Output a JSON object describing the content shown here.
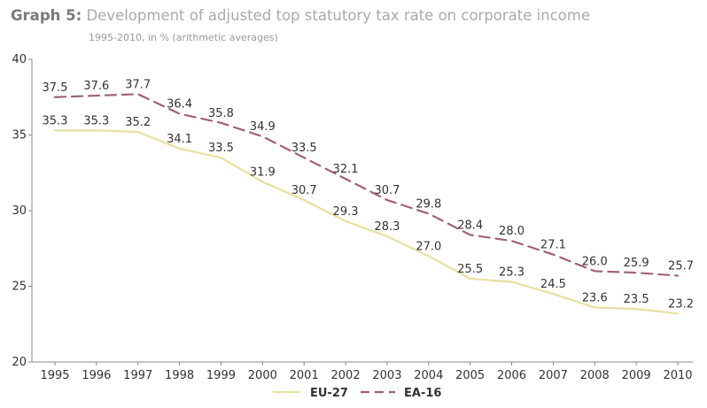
{
  "header": {
    "title_prefix": "Graph 5:",
    "title": "Development of adjusted top statutory tax rate on corporate income",
    "subtitle": "1995-2010, in % (arithmetic averages)"
  },
  "chart_data": {
    "type": "line",
    "x": [
      "1995",
      "1996",
      "1997",
      "1998",
      "1999",
      "2000",
      "2001",
      "2002",
      "2003",
      "2004",
      "2005",
      "2006",
      "2007",
      "2008",
      "2009",
      "2010"
    ],
    "ylim": [
      20,
      40
    ],
    "yticks": [
      20,
      25,
      30,
      35,
      40
    ],
    "grid": false,
    "legend": "bottom",
    "series": [
      {
        "name": "EU-27",
        "color": "#e8e0a0",
        "style": "solid",
        "values": [
          35.3,
          35.3,
          35.2,
          34.1,
          33.5,
          31.9,
          30.7,
          29.3,
          28.3,
          27.0,
          25.5,
          25.3,
          24.5,
          23.6,
          23.5,
          23.2
        ]
      },
      {
        "name": "EA-16",
        "color": "#a0607a",
        "style": "dashed",
        "values": [
          37.5,
          37.6,
          37.7,
          36.4,
          35.8,
          34.9,
          33.5,
          32.1,
          30.7,
          29.8,
          28.4,
          28.0,
          27.1,
          26.0,
          25.9,
          25.7
        ]
      }
    ]
  }
}
